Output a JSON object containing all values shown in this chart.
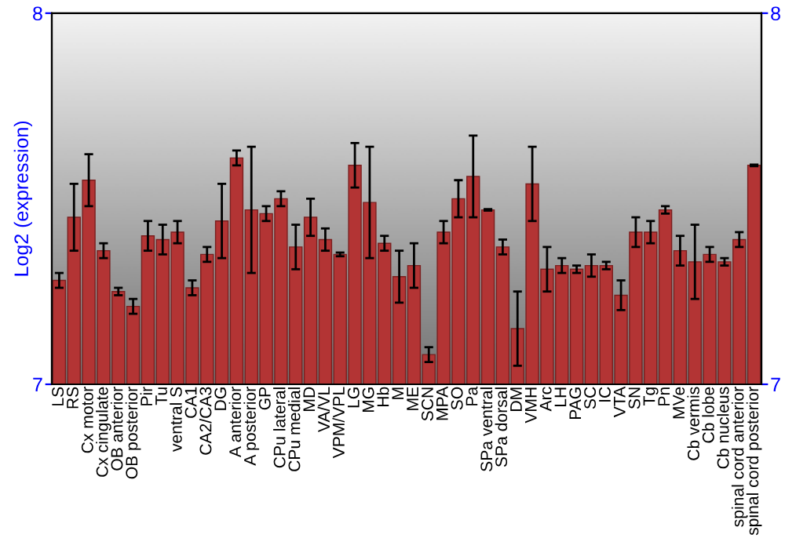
{
  "chart_data": {
    "type": "bar",
    "ylabel": "Log2 (expression)",
    "categories": [
      "LS",
      "RS",
      "Cx motor",
      "Cx cingulate",
      "OB anterior",
      "OB posterior",
      "Pir",
      "Tu",
      "ventral S",
      "CA1",
      "CA2/CA3",
      "DG",
      "A anterior",
      "A posterior",
      "GP",
      "CPu lateral",
      "CPu medial",
      "MD",
      "VA/VL",
      "VPM/VPL",
      "LG",
      "MG",
      "Hb",
      "M",
      "ME",
      "SCN",
      "MPA",
      "SO",
      "Pa",
      "SPa ventral",
      "SPa dorsal",
      "DM",
      "VMH",
      "Arc",
      "LH",
      "PAG",
      "SC",
      "IC",
      "VTA",
      "SN",
      "Tg",
      "Pn",
      "MVe",
      "Cb vermis",
      "Cb lobe",
      "Cb nucleus",
      "spinal cord anterior",
      "spinal cord posterior"
    ],
    "values": [
      7.28,
      7.45,
      7.55,
      7.36,
      7.25,
      7.21,
      7.4,
      7.39,
      7.41,
      7.26,
      7.35,
      7.44,
      7.61,
      7.47,
      7.46,
      7.5,
      7.37,
      7.45,
      7.39,
      7.35,
      7.59,
      7.49,
      7.38,
      7.29,
      7.32,
      7.08,
      7.41,
      7.5,
      7.56,
      7.47,
      7.37,
      7.15,
      7.54,
      7.31,
      7.32,
      7.31,
      7.32,
      7.32,
      7.24,
      7.41,
      7.41,
      7.47,
      7.36,
      7.33,
      7.35,
      7.33,
      7.39,
      7.59
    ],
    "errors": [
      0.02,
      0.09,
      0.07,
      0.02,
      0.01,
      0.02,
      0.04,
      0.04,
      0.03,
      0.02,
      0.02,
      0.1,
      0.02,
      0.17,
      0.02,
      0.02,
      0.06,
      0.05,
      0.03,
      0.005,
      0.06,
      0.15,
      0.02,
      0.07,
      0.06,
      0.02,
      0.03,
      0.05,
      0.11,
      0.002,
      0.02,
      0.1,
      0.1,
      0.06,
      0.02,
      0.01,
      0.03,
      0.01,
      0.04,
      0.04,
      0.03,
      0.01,
      0.04,
      0.1,
      0.02,
      0.01,
      0.02,
      0.002
    ],
    "color": "#b33434",
    "ylim": [
      7,
      8
    ],
    "yticks": [
      7,
      8
    ],
    "y2lim": [
      7,
      8
    ],
    "y2ticks": [
      7,
      8
    ],
    "grid": false
  }
}
